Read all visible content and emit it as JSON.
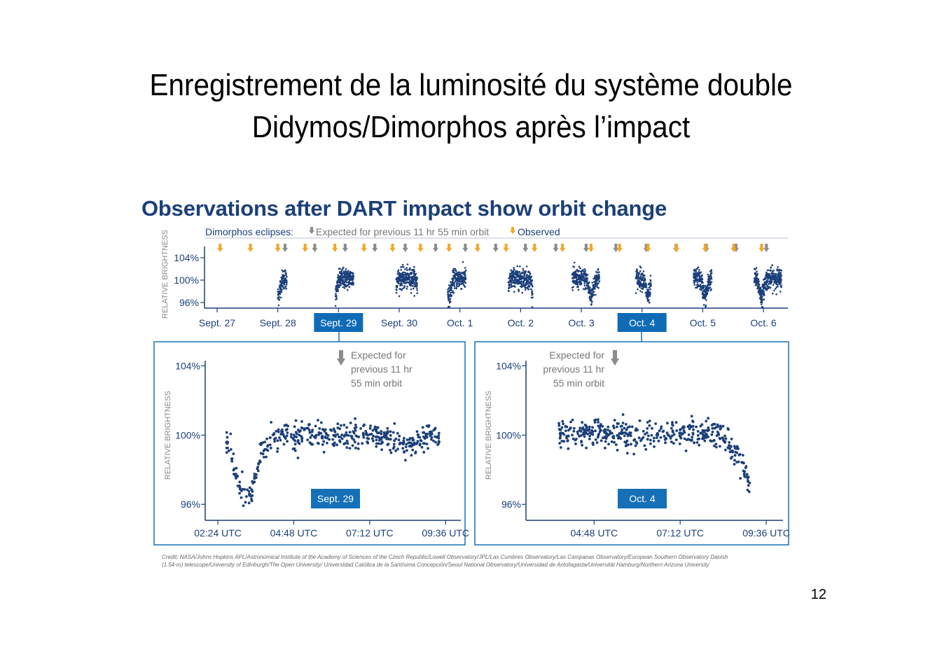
{
  "slide": {
    "title_line1": "Enregistrement  de la luminosité du système double",
    "title_line2": "Didymos/Dimorphos après l’impact",
    "page_number": "12"
  },
  "figure": {
    "title": "Observations after DART impact show orbit change",
    "legend": {
      "label": "Dimorphos eclipses:",
      "expected": "Expected for previous 11 hr 55 min orbit",
      "observed": "Observed"
    },
    "credit_line1": "Credit: NASA/Johns Hopkins APL/Astronomical Institute of the Academy of Sciences of the Czech Republic/Lowell Observatory/JPL/Las Cumbres Observatory/Las Campanas Observatory/European Southern Observatory Danish",
    "credit_line2": "(1.54-m) telescope/University of Edinburgh/The Open University/ Universidad Católica de la Santísima Concepción/Seoul National Observatory/Universidad de Antofagasta/Universität Hamburg/Northern Arizona University",
    "colors": {
      "navy": "#1b3f7a",
      "box_blue": "#1570b8",
      "expected_gray": "#8c8c8c",
      "observed_orange": "#f5a623",
      "highlight": "#0f6bb5"
    }
  },
  "chart_data": [
    {
      "type": "scatter",
      "id": "overview",
      "ylabel": "RELATIVE BRIGHTNESS",
      "yticks": [
        "104%",
        "100%",
        "96%"
      ],
      "ytick_values": [
        104,
        100,
        96
      ],
      "ylim": [
        95,
        106
      ],
      "xticks": [
        "Sept. 27",
        "Sept. 28",
        "Sept. 29",
        "Sept. 30",
        "Oct. 1",
        "Oct. 2",
        "Oct. 3",
        "Oct. 4",
        "Oct. 5",
        "Oct. 6"
      ],
      "highlighted_ticks": [
        "Sept. 29",
        "Oct. 4"
      ],
      "xlim": [
        26.95,
        36.4
      ],
      "observation_windows": [
        {
          "start": 28.0,
          "end": 28.15
        },
        {
          "start": 28.95,
          "end": 29.25
        },
        {
          "start": 29.95,
          "end": 30.3
        },
        {
          "start": 30.8,
          "end": 31.1
        },
        {
          "start": 31.8,
          "end": 32.2
        },
        {
          "start": 32.85,
          "end": 33.3
        },
        {
          "start": 33.9,
          "end": 34.15
        },
        {
          "start": 34.85,
          "end": 35.15
        },
        {
          "start": 35.85,
          "end": 36.3
        }
      ],
      "expected_eclipses": [
        28.05,
        28.54,
        29.04,
        29.53,
        30.03,
        30.53,
        31.02,
        31.52,
        32.01,
        32.51,
        33.01,
        33.5,
        34.0,
        34.49,
        34.99,
        35.48,
        35.98
      ],
      "observed_eclipses": [
        27.05,
        27.55,
        28.0,
        28.45,
        28.94,
        29.42,
        29.89,
        30.35,
        30.82,
        31.29,
        31.76,
        32.23,
        32.69,
        33.16,
        33.63,
        34.1,
        34.57,
        35.04,
        35.51,
        35.97
      ]
    },
    {
      "type": "scatter",
      "id": "sept29",
      "panel_label": "Sept. 29",
      "ylabel": "RELATIVE BRIGHTNESS",
      "yticks": [
        "104%",
        "100%",
        "96%"
      ],
      "ytick_values": [
        104,
        100,
        96
      ],
      "ylim": [
        95.2,
        104.3
      ],
      "xticks": [
        "02:24 UTC",
        "04:48 UTC",
        "07:12 UTC",
        "09:36 UTC"
      ],
      "xtick_values": [
        2.4,
        4.8,
        7.2,
        9.6
      ],
      "xlim": [
        2.0,
        9.95
      ],
      "xlabel": "",
      "annotation": {
        "text_lines": [
          "Expected for",
          "previous 11 hr",
          "55 min orbit"
        ],
        "x": 6.1
      },
      "series": [
        {
          "shape": "eclipse",
          "x_start": 2.65,
          "x_end": 9.4,
          "points": 450,
          "base": 100.0,
          "noise": 0.35,
          "dip_center": 3.3,
          "dip_depth": 3.6,
          "dip_width": 0.45,
          "secondary_center": 8.4,
          "secondary_depth": 0.6,
          "secondary_width": 0.4
        }
      ]
    },
    {
      "type": "scatter",
      "id": "oct4",
      "panel_label": "Oct. 4",
      "ylabel": "RELATIVE BRIGHTNESS",
      "yticks": [
        "104%",
        "100%",
        "96%"
      ],
      "ytick_values": [
        104,
        100,
        96
      ],
      "ylim": [
        95.2,
        104.3
      ],
      "xticks": [
        "04:48 UTC",
        "07:12 UTC",
        "09:36 UTC"
      ],
      "xtick_values": [
        4.8,
        7.2,
        9.6
      ],
      "xlim": [
        2.9,
        9.95
      ],
      "xlabel": "",
      "annotation": {
        "text_lines": [
          "Expected for",
          "previous 11 hr",
          "55 min orbit"
        ],
        "x": 5.3
      },
      "series": [
        {
          "shape": "decline",
          "x_start": 3.8,
          "x_end": 9.15,
          "points": 420,
          "base": 100.1,
          "noise": 0.38,
          "drop_start": 8.1,
          "drop_end": 9.15,
          "drop_depth": 3.0
        }
      ]
    }
  ]
}
